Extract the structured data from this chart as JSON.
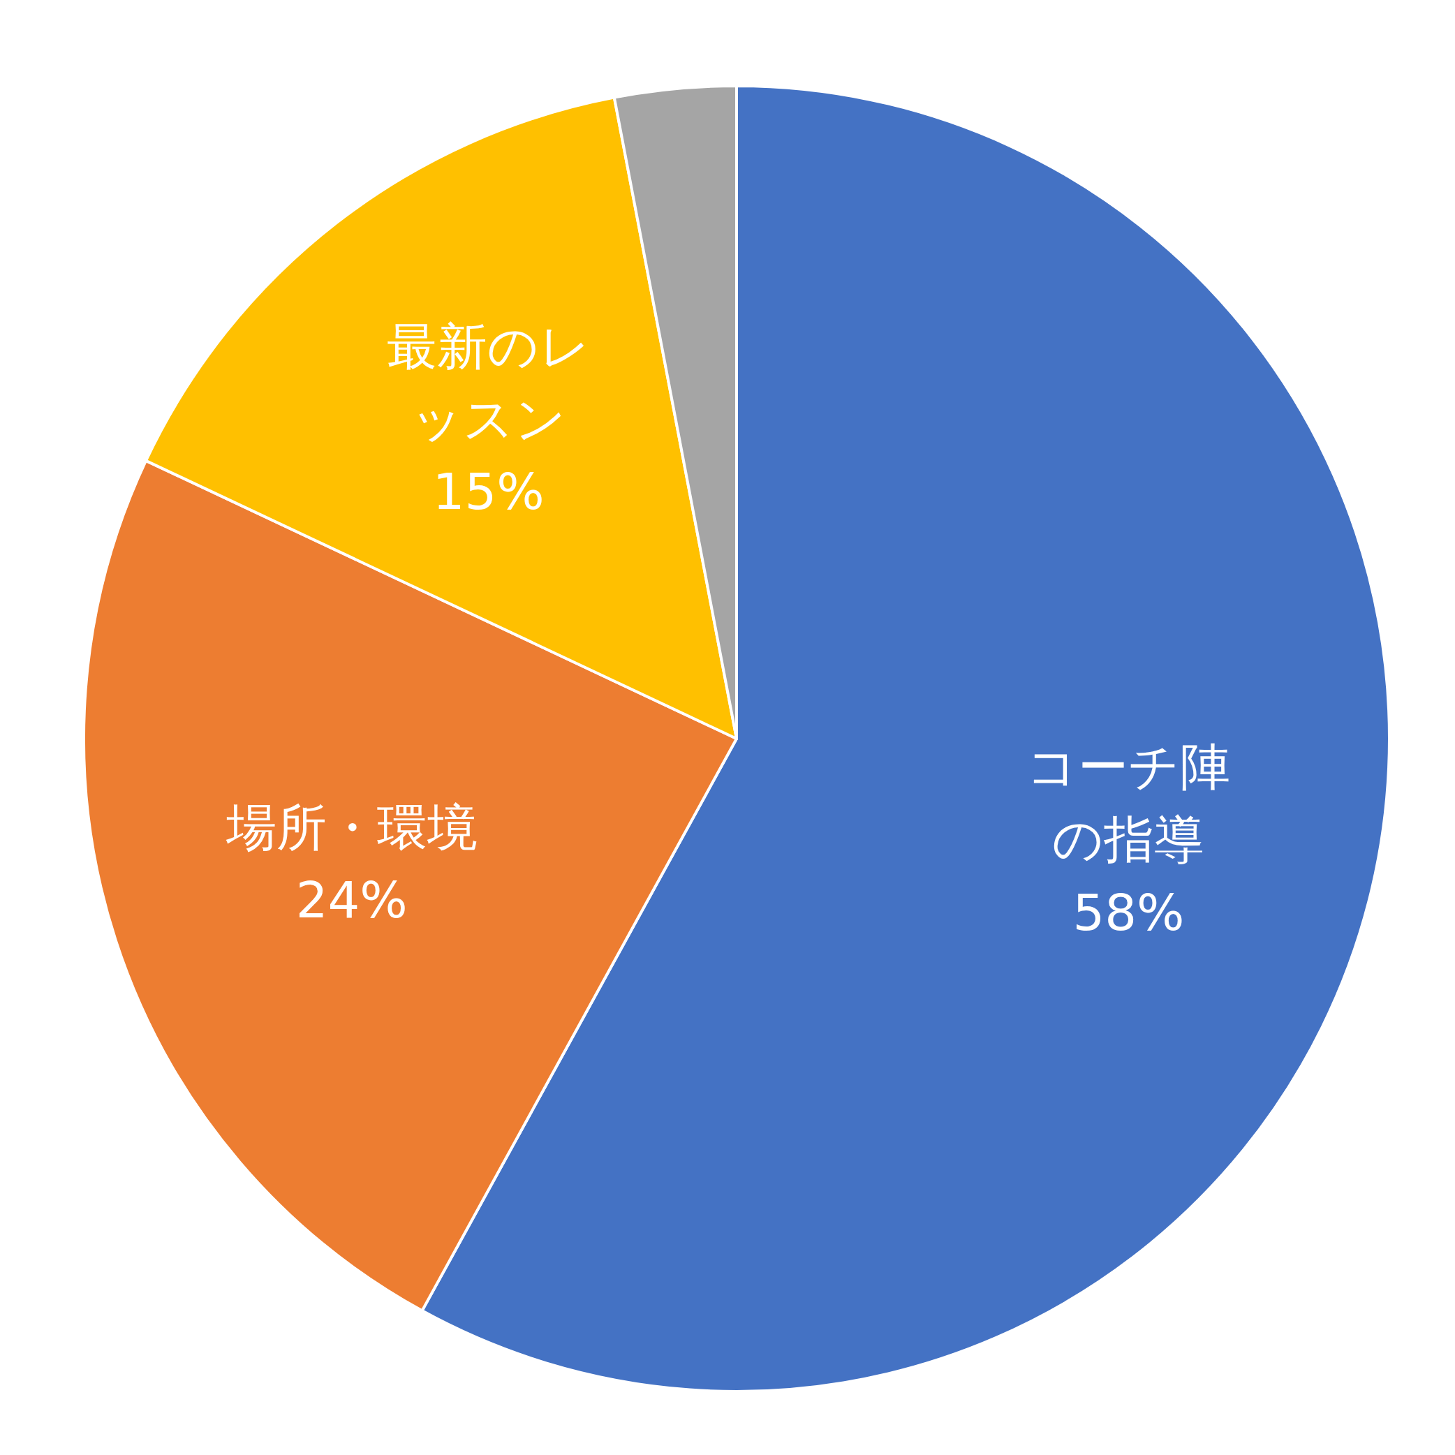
{
  "chart_data": {
    "type": "pie",
    "categories": [
      "コーチ陣の指導",
      "場所・環境",
      "最新のレッスン",
      null
    ],
    "values": [
      58,
      24,
      15,
      3
    ],
    "value_labels": [
      "58%",
      "24%",
      "15%",
      null
    ],
    "colors": [
      "#4472c4",
      "#ed7d31",
      "#ffc000",
      "#a5a5a5"
    ]
  }
}
